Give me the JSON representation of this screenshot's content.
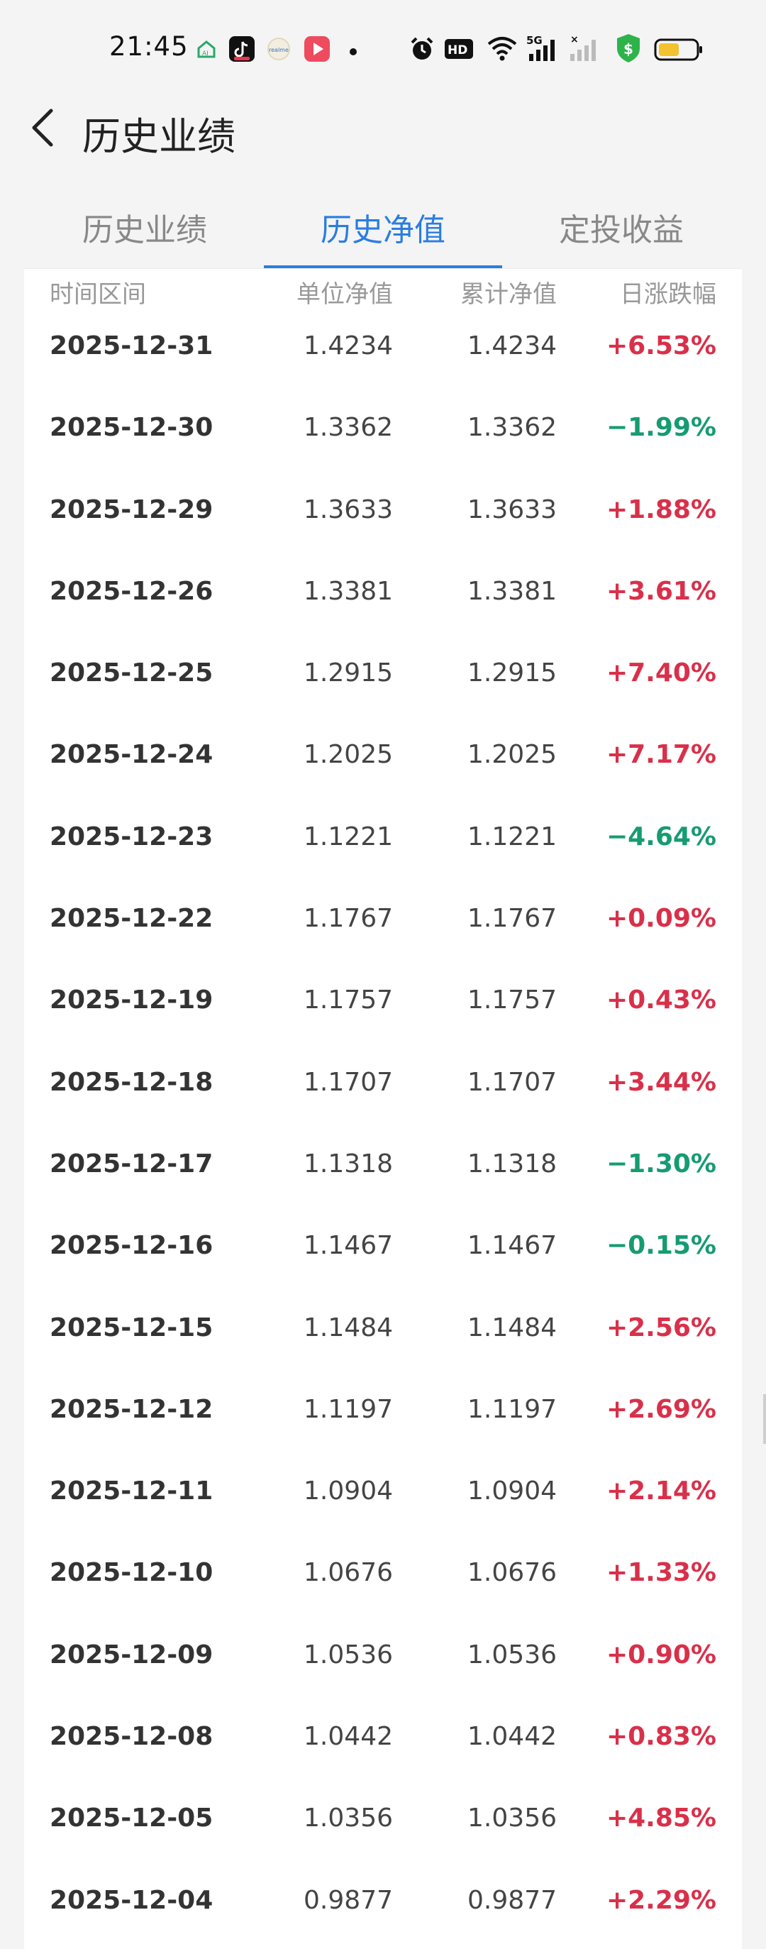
{
  "status_bar": {
    "time": "21:45",
    "icons": [
      "app-ai-icon",
      "tiktok-icon",
      "realme-icon",
      "video-icon",
      "dot-icon",
      "alarm-icon",
      "hd-icon",
      "wifi-icon",
      "signal-5g-icon",
      "signal-icon",
      "security-shield-icon",
      "battery-icon"
    ],
    "colors": {
      "shield": "#2db34a",
      "battery": "#f2c230"
    }
  },
  "header": {
    "title": "历史业绩"
  },
  "tabs": [
    {
      "label": "历史业绩",
      "active": false
    },
    {
      "label": "历史净值",
      "active": true
    },
    {
      "label": "定投收益",
      "active": false
    }
  ],
  "table": {
    "headers": {
      "date": "时间区间",
      "unit_nav": "单位净值",
      "acc_nav": "累计净值",
      "change": "日涨跌幅"
    },
    "rows": [
      {
        "date": "2025-12-31",
        "unit": "1.4234",
        "acc": "1.4234",
        "change": "+6.53%"
      },
      {
        "date": "2025-12-30",
        "unit": "1.3362",
        "acc": "1.3362",
        "change": "−1.99%"
      },
      {
        "date": "2025-12-29",
        "unit": "1.3633",
        "acc": "1.3633",
        "change": "+1.88%"
      },
      {
        "date": "2025-12-26",
        "unit": "1.3381",
        "acc": "1.3381",
        "change": "+3.61%"
      },
      {
        "date": "2025-12-25",
        "unit": "1.2915",
        "acc": "1.2915",
        "change": "+7.40%"
      },
      {
        "date": "2025-12-24",
        "unit": "1.2025",
        "acc": "1.2025",
        "change": "+7.17%"
      },
      {
        "date": "2025-12-23",
        "unit": "1.1221",
        "acc": "1.1221",
        "change": "−4.64%"
      },
      {
        "date": "2025-12-22",
        "unit": "1.1767",
        "acc": "1.1767",
        "change": "+0.09%"
      },
      {
        "date": "2025-12-19",
        "unit": "1.1757",
        "acc": "1.1757",
        "change": "+0.43%"
      },
      {
        "date": "2025-12-18",
        "unit": "1.1707",
        "acc": "1.1707",
        "change": "+3.44%"
      },
      {
        "date": "2025-12-17",
        "unit": "1.1318",
        "acc": "1.1318",
        "change": "−1.30%"
      },
      {
        "date": "2025-12-16",
        "unit": "1.1467",
        "acc": "1.1467",
        "change": "−0.15%"
      },
      {
        "date": "2025-12-15",
        "unit": "1.1484",
        "acc": "1.1484",
        "change": "+2.56%"
      },
      {
        "date": "2025-12-12",
        "unit": "1.1197",
        "acc": "1.1197",
        "change": "+2.69%"
      },
      {
        "date": "2025-12-11",
        "unit": "1.0904",
        "acc": "1.0904",
        "change": "+2.14%"
      },
      {
        "date": "2025-12-10",
        "unit": "1.0676",
        "acc": "1.0676",
        "change": "+1.33%"
      },
      {
        "date": "2025-12-09",
        "unit": "1.0536",
        "acc": "1.0536",
        "change": "+0.90%"
      },
      {
        "date": "2025-12-08",
        "unit": "1.0442",
        "acc": "1.0442",
        "change": "+0.83%"
      },
      {
        "date": "2025-12-05",
        "unit": "1.0356",
        "acc": "1.0356",
        "change": "+4.85%"
      },
      {
        "date": "2025-12-04",
        "unit": "0.9877",
        "acc": "0.9877",
        "change": "+2.29%"
      }
    ]
  },
  "colors": {
    "accent": "#2a7de1",
    "up": "#d9304a",
    "down": "#169b73"
  }
}
